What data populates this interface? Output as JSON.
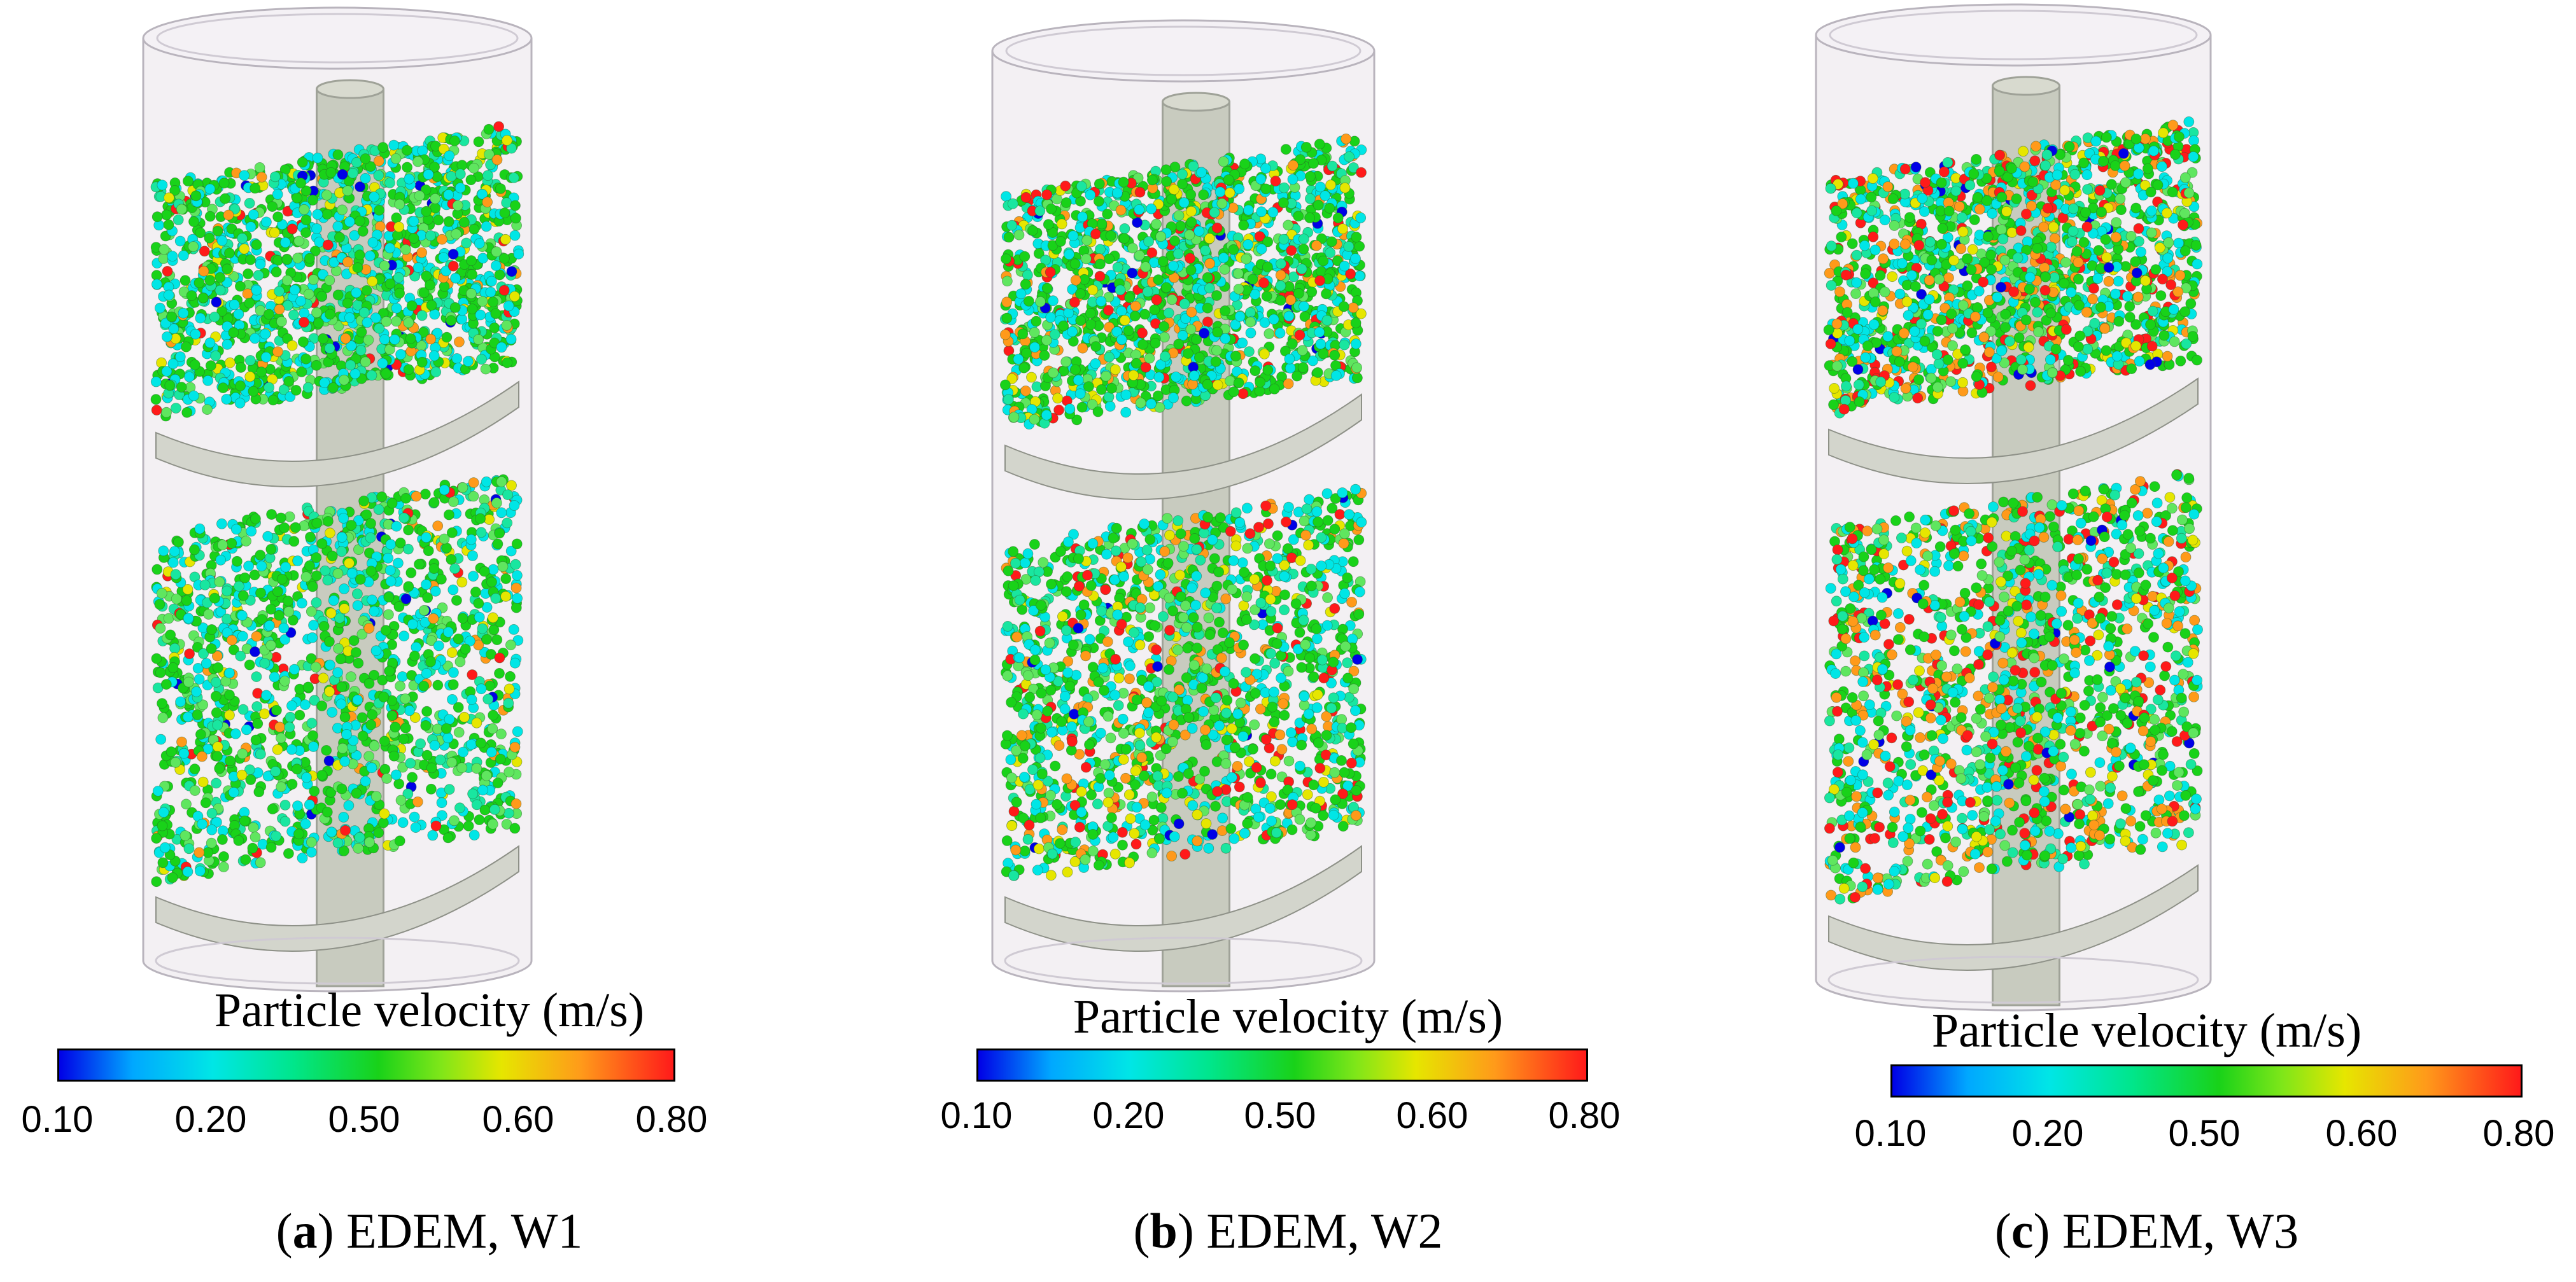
{
  "panels": [
    {
      "legend_title": "Particle velocity (m/s)",
      "ticks": [
        "0.10",
        "0.20",
        "0.50",
        "0.60",
        "0.80"
      ],
      "caption_letter": "a",
      "caption_text": "EDEM, W1",
      "caption_open": "(",
      "caption_close": ")"
    },
    {
      "legend_title": "Particle velocity (m/s)",
      "ticks": [
        "0.10",
        "0.20",
        "0.50",
        "0.60",
        "0.80"
      ],
      "caption_letter": "b",
      "caption_text": "EDEM, W2",
      "caption_open": "(",
      "caption_close": ")"
    },
    {
      "legend_title": "Particle velocity (m/s)",
      "ticks": [
        "0.10",
        "0.20",
        "0.50",
        "0.60",
        "0.80"
      ],
      "caption_letter": "c",
      "caption_text": "EDEM, W3",
      "caption_open": "(",
      "caption_close": ")"
    }
  ],
  "colors": {
    "blue": "#0000e6",
    "cyan": "#00e6e6",
    "green": "#19d219",
    "yellow": "#e6e600",
    "red": "#ff1a1a",
    "shaft": "#c8cbbf",
    "cylinder": "#e9e4ea"
  }
}
